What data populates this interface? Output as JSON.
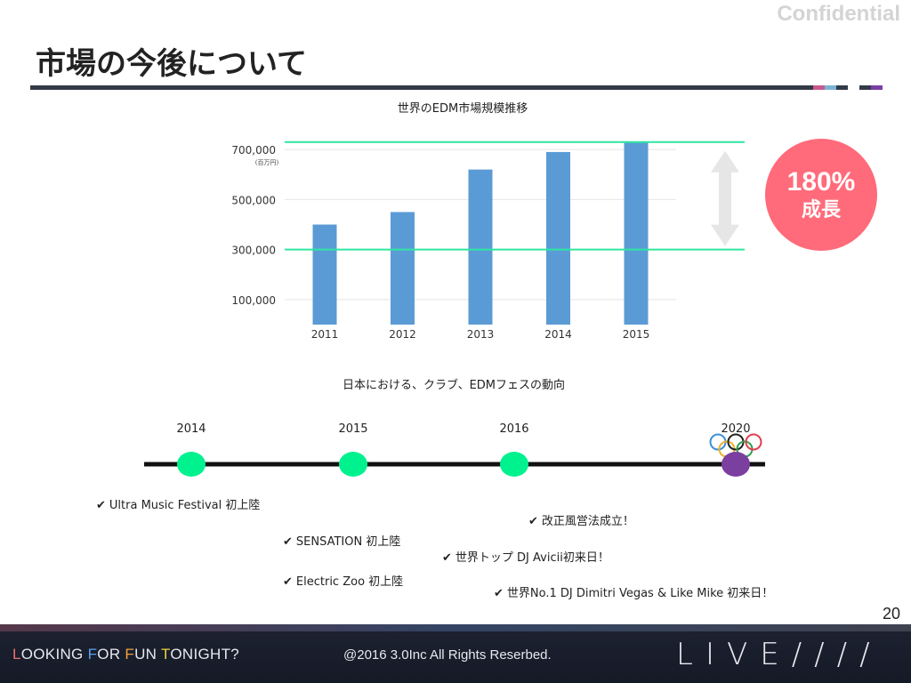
{
  "slide": {
    "title": "市場の今後について",
    "watermark": "Confidential",
    "page_number": "20",
    "rule_colors": [
      "#c85a8a",
      "#7ab3d6",
      "#333a48",
      "#ffffff",
      "#333a48",
      "#7a3fa6"
    ]
  },
  "chart_data": [
    {
      "type": "bar",
      "title": "世界のEDM市場規模推移",
      "categories": [
        "2011",
        "2012",
        "2013",
        "2014",
        "2015"
      ],
      "values": [
        400000,
        450000,
        620000,
        690000,
        730000
      ],
      "y_tick_labels": [
        "700,000",
        "500,000",
        "300,000",
        "100,000"
      ],
      "y_ticks": [
        700000,
        500000,
        300000,
        100000
      ],
      "unit_label": "(百万円)",
      "ylim": [
        0,
        800000
      ],
      "grid": true,
      "bar_color": "#5b9bd5",
      "reference_lines": [
        730000,
        300000
      ],
      "reference_line_color": "#2ee6a0",
      "growth_arrow_color": "#e6e6e6"
    }
  ],
  "growth_badge": {
    "value": "180%",
    "label": "成長",
    "color": "#ff6b7a"
  },
  "timeline": {
    "title": "日本における、クラブ、EDMフェスの動向",
    "line_color": "#111111",
    "marker_color": "#00f28f",
    "final_marker_color": "#7b3fa0",
    "years": [
      {
        "label": "2014"
      },
      {
        "label": "2015"
      },
      {
        "label": "2016"
      },
      {
        "label": "2020",
        "has_olympic_rings": true
      }
    ],
    "olympic_ring_colors": [
      "#3c8fd8",
      "#222222",
      "#e04050",
      "#f0b030",
      "#30a050"
    ],
    "notes": [
      "Ultra Music Festival 初上陸",
      "SENSATION 初上陸",
      "Electric Zoo 初上陸",
      "改正風営法成立！",
      "世界トップ DJ Avicii初来日！",
      "世界No.1 DJ Dimitri Vegas & Like Mike 初来日！"
    ],
    "check_mark": "✔"
  },
  "footer": {
    "tagline": "LOOKING FOR FUN TONIGHT?",
    "tagline_initial_colors": [
      "#f07070",
      "#5aa0f0",
      "#f0a040",
      "#f0d040"
    ],
    "copyright": "@2016 3.0Inc All Rights Reserbed.",
    "brand": "LIVE////"
  }
}
